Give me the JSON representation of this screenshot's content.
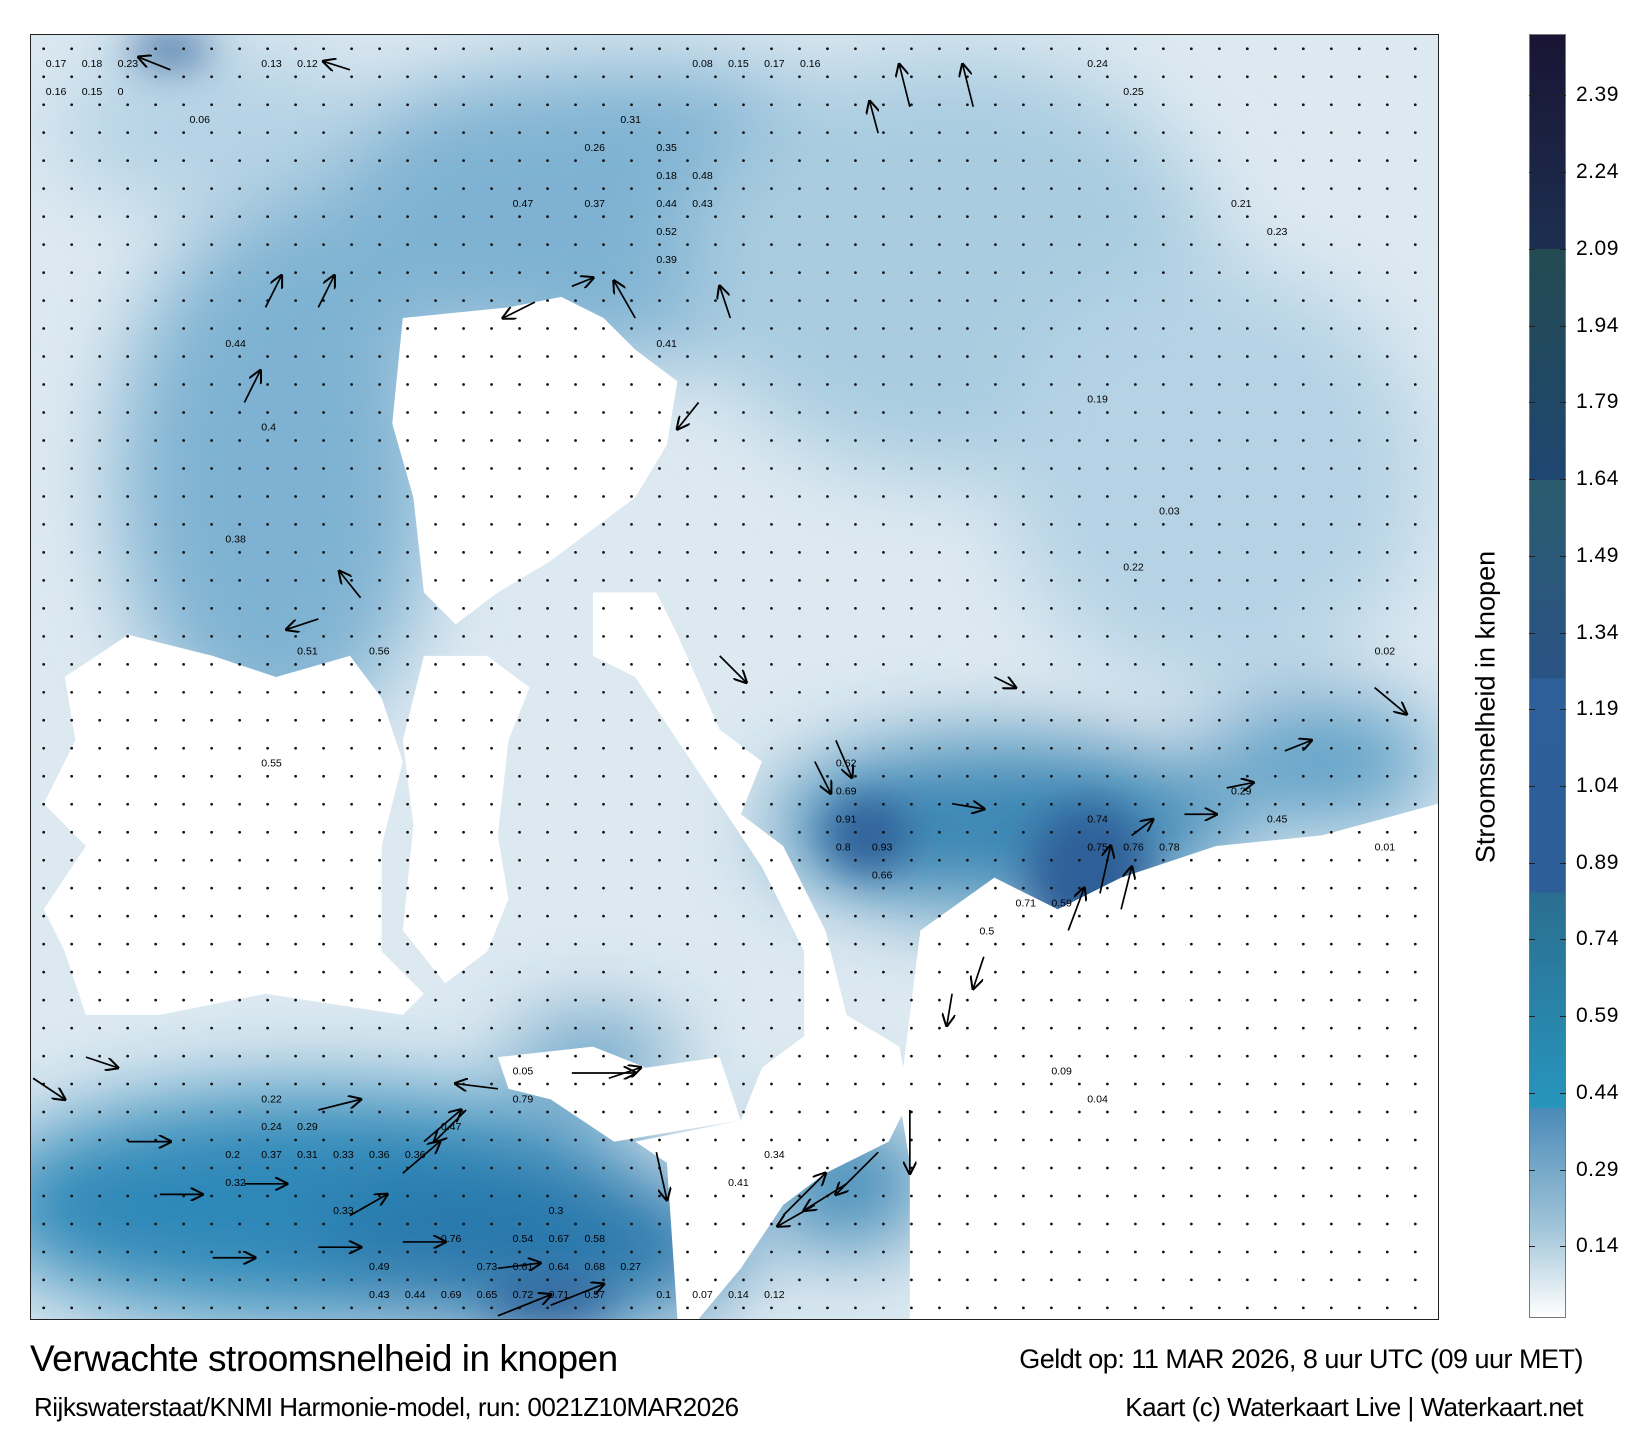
{
  "title": "Verwachte stroomsnelheid in knopen",
  "valid_time": "Geldt op: 11 MAR 2026, 8 uur UTC (09 uur MET)",
  "source": "Rijkswaterstaat/KNMI Harmonie-model, run: 0021Z10MAR2026",
  "credit": "Kaart (c) Waterkaart Live | Waterkaart.net",
  "colorbar": {
    "title": "Stroomsnelheid in knopen",
    "unit": "knopen",
    "scale_min": 0,
    "scale_max": 2.51,
    "ticks": [
      "2.39",
      "2.24",
      "2.09",
      "1.94",
      "1.79",
      "1.64",
      "1.49",
      "1.34",
      "1.19",
      "1.04",
      "0.89",
      "0.74",
      "0.59",
      "0.44",
      "0.29",
      "0.14"
    ],
    "colors": {
      "low": "#ffffff",
      "mid": "#2795bd",
      "high": "#2e5e98",
      "max": "#1a1434",
      "land": "#ffffff"
    }
  },
  "map": {
    "labels": [
      "0.17",
      "0.18",
      "0.23",
      "0.16",
      "0.15",
      "0.13",
      "0.12",
      "0.08",
      "0.15",
      "0.16",
      "0.17",
      "0.25",
      "0.24",
      "0.06",
      "0.23",
      "0.21",
      "0.22",
      "0.19",
      "0.18",
      "0.26",
      "0.31",
      "0.44",
      "0.43",
      "0.47",
      "0.48",
      "0.52",
      "0.37",
      "0.39",
      "0.35",
      "0.41",
      "0.38",
      "0.4",
      "0.51",
      "0.56",
      "0.44",
      "0.55",
      "0.62",
      "0.69",
      "0.93",
      "0.91",
      "0.66",
      "0.8",
      "0.71",
      "0.75",
      "0.76",
      "0.74",
      "0.78",
      "0.59",
      "0.5",
      "0.45",
      "0.29",
      "0.33",
      "0.36",
      "0.47",
      "0.79",
      "0.54",
      "0.61",
      "0.64",
      "0.67",
      "0.72",
      "0.73",
      "0.71",
      "0.68",
      "0.58",
      "0.57",
      "0.65",
      "0.69",
      "0.76",
      "0.44",
      "0.49",
      "0.43",
      "0.36",
      "0.37",
      "0.31",
      "0.29",
      "0.33",
      "0.32",
      "0.2",
      "0.22",
      "0.24",
      "0.27",
      "0.3",
      "0.41",
      "0.34",
      "0.14",
      "0.12",
      "0.1",
      "0.09",
      "0.07",
      "0.05",
      "0.04",
      "0.03",
      "0.02",
      "0.01",
      "0"
    ]
  }
}
